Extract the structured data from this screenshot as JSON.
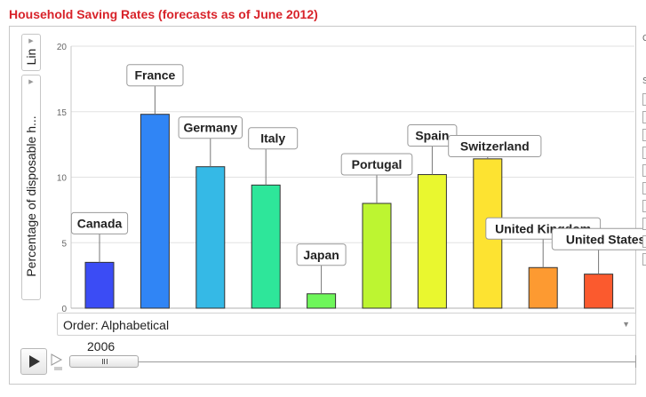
{
  "title": "Household Saving Rates (forecasts as of June 2012)",
  "x_scale_selector": {
    "label": "Lin"
  },
  "y_axis_selector": {
    "label": "Percentage of disposable h..."
  },
  "order_dropdown": {
    "label": "Order: Alphabetical"
  },
  "timeline": {
    "year": "2006"
  },
  "chart_data": {
    "type": "bar",
    "title": "Household Saving Rates (forecasts as of June 2012)",
    "ylabel": "Percentage of disposable h...",
    "xlabel": "",
    "ylim": [
      0,
      20
    ],
    "yticks": [
      0,
      5,
      10,
      15,
      20
    ],
    "grid": true,
    "legend": "none",
    "categories": [
      "Canada",
      "France",
      "Germany",
      "Italy",
      "Japan",
      "Portugal",
      "Spain",
      "Switzerland",
      "United Kingdom",
      "United States"
    ],
    "values": [
      3.5,
      14.8,
      10.8,
      9.4,
      1.1,
      8.0,
      10.2,
      11.4,
      3.1,
      2.6
    ],
    "colors": [
      "#3b4cf5",
      "#3085f5",
      "#35b9e6",
      "#2ee69a",
      "#6ef65a",
      "#bdf531",
      "#e9f72f",
      "#fde331",
      "#fd9a31",
      "#fb5a2e"
    ],
    "label_positions": [
      "above",
      "above",
      "above",
      "above",
      "above",
      "above",
      "above",
      "above",
      "above",
      "above"
    ]
  }
}
